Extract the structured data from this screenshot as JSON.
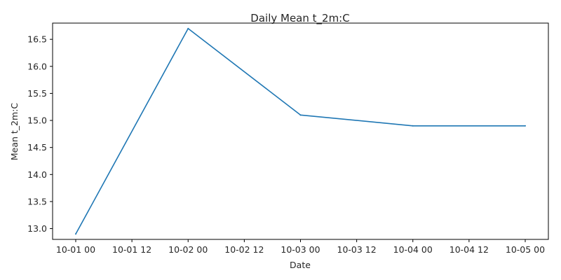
{
  "chart_data": {
    "type": "line",
    "title": "Daily Mean t_2m:C",
    "xlabel": "Date",
    "ylabel": "Mean t_2m:C",
    "x_ticks": [
      "10-01 00",
      "10-01 12",
      "10-02 00",
      "10-02 12",
      "10-03 00",
      "10-03 12",
      "10-04 00",
      "10-04 12",
      "10-05 00"
    ],
    "y_ticks": [
      "13.0",
      "13.5",
      "14.0",
      "14.5",
      "15.0",
      "15.5",
      "16.0",
      "16.5"
    ],
    "xlim": [
      "10-01 00",
      "10-05 00"
    ],
    "ylim": [
      12.8,
      16.8
    ],
    "grid": false,
    "series": [
      {
        "color": "#1f77b4",
        "x": [
          "10-01 00",
          "10-02 00",
          "10-03 00",
          "10-04 00",
          "10-05 00"
        ],
        "values": [
          12.9,
          16.7,
          15.1,
          14.9,
          14.9
        ]
      }
    ]
  }
}
